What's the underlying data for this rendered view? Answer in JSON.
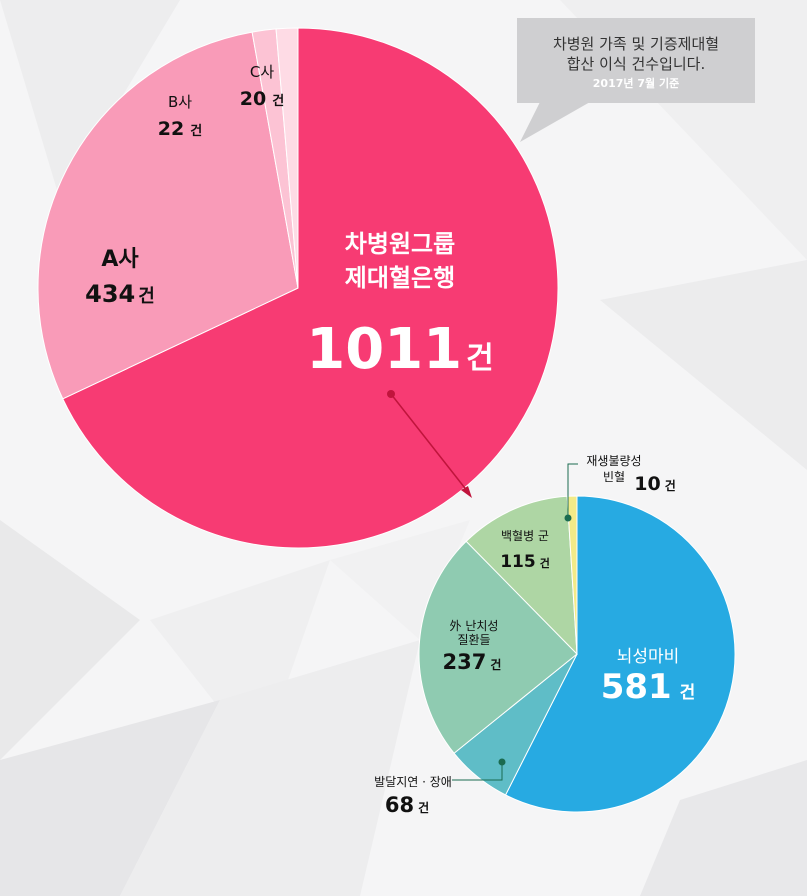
{
  "callout": {
    "line1": "차병원 가족 및 기증제대혈",
    "line2": "합산 이식 건수입니다.",
    "line3": "2017년  7월 기준"
  },
  "unit": "건",
  "chart_data": [
    {
      "type": "pie",
      "slices": [
        {
          "label_lines": [
            "차병원그룹",
            "제대혈은행"
          ],
          "value": 1011,
          "color": "#f73b73"
        },
        {
          "label_lines": [
            "A사"
          ],
          "value": 434,
          "color": "#f99bb8"
        },
        {
          "label_lines": [
            "B사"
          ],
          "value": 22,
          "color": "#fcc3d4"
        },
        {
          "label_lines": [
            "C사"
          ],
          "value": 20,
          "color": "#fedbe5"
        }
      ]
    },
    {
      "type": "pie",
      "slices": [
        {
          "label_lines": [
            "뇌성마비"
          ],
          "value": 581,
          "color": "#27aae2"
        },
        {
          "label_lines": [
            "발달지연 · 장애"
          ],
          "value": 68,
          "color": "#5fbdc7"
        },
        {
          "label_lines": [
            "外 난치성",
            "질환들"
          ],
          "value": 237,
          "color": "#8fcbb1"
        },
        {
          "label_lines": [
            "백혈병 군"
          ],
          "value": 115,
          "color": "#aed6a4"
        },
        {
          "label_lines": [
            "재생불량성",
            "빈혈"
          ],
          "value": 10,
          "color": "#f2ea88"
        }
      ]
    }
  ]
}
